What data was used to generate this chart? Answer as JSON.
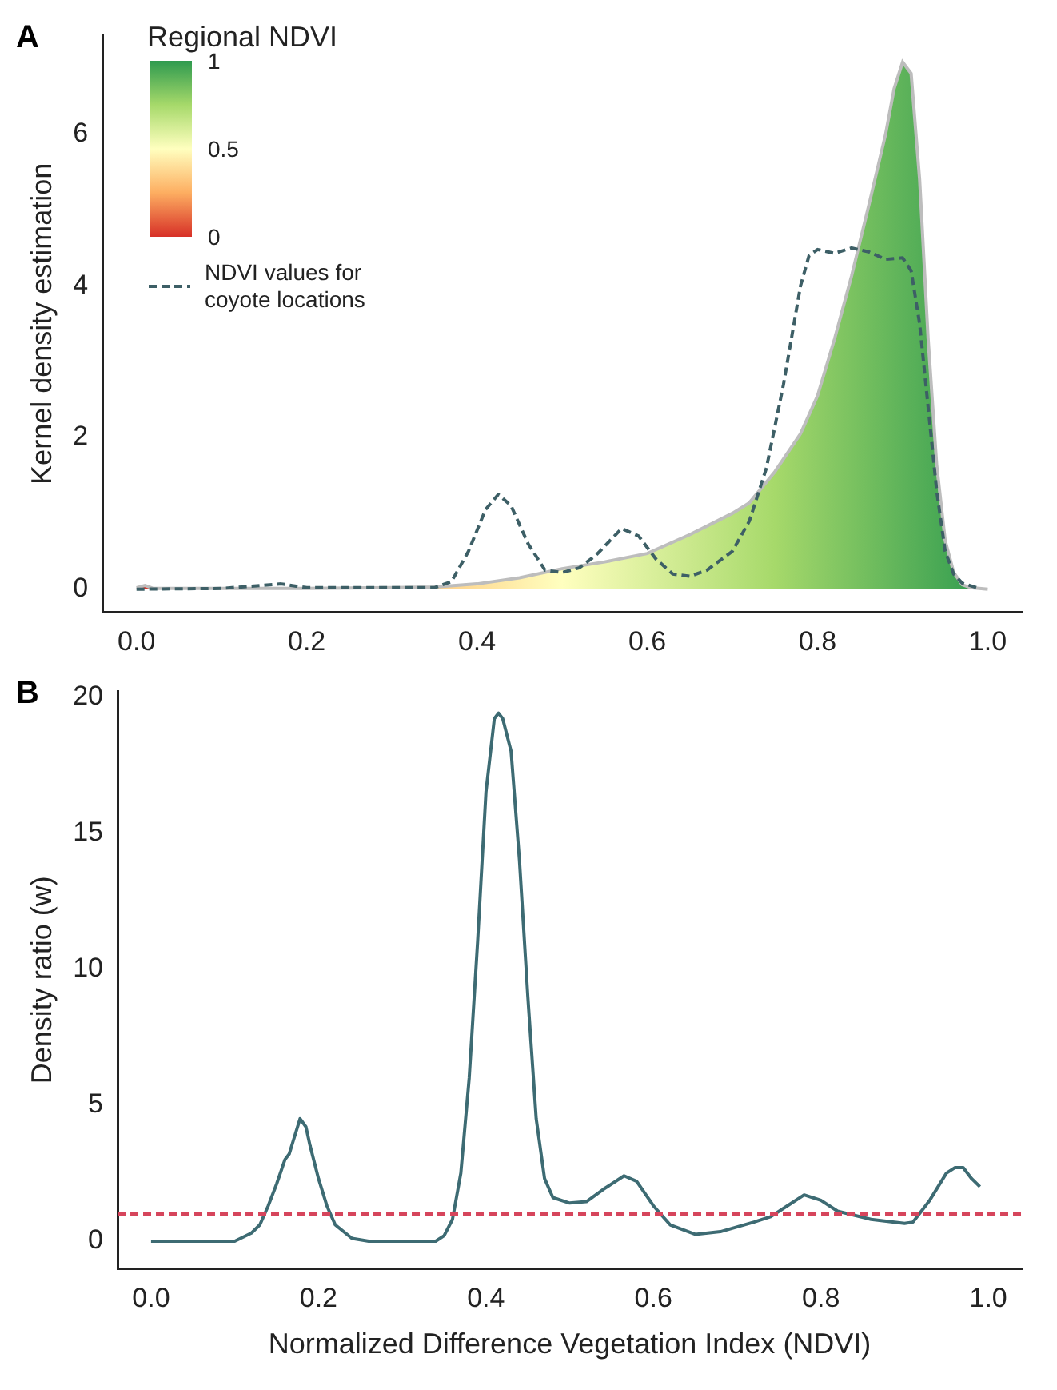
{
  "chart_data": [
    {
      "type": "area",
      "annotations": [
        "A",
        "1",
        "0.5",
        "0"
      ],
      "ylabel": "Kernel density estimation",
      "clabel": "Regional NDVI",
      "legend": "top left",
      "xlim": [
        -0.04,
        1.04
      ],
      "xticks": [
        {
          "value": 0,
          "label": "0.0"
        },
        {
          "value": 0.2,
          "label": "0.2"
        },
        {
          "value": 0.4,
          "label": "0.4"
        },
        {
          "value": 0.6,
          "label": "0.6"
        },
        {
          "value": 0.8,
          "label": "0.8"
        },
        {
          "value": 1,
          "label": "1.0"
        }
      ],
      "ylim": [
        -0.3,
        7.3
      ],
      "yticks": [
        0,
        2,
        4,
        6
      ],
      "series": [
        {
          "type": "area",
          "color": "#7cc35f",
          "x": [
            0,
            0.01,
            0.02,
            0.1,
            0.2,
            0.3,
            0.35,
            0.4,
            0.45,
            0.5,
            0.55,
            0.6,
            0.65,
            0.7,
            0.72,
            0.75,
            0.78,
            0.8,
            0.82,
            0.84,
            0.86,
            0.88,
            0.89,
            0.9,
            0.91,
            0.92,
            0.93,
            0.94,
            0.95,
            0.96,
            0.97,
            0.98,
            1
          ],
          "values": [
            0.02,
            0.05,
            0.01,
            0.01,
            0.01,
            0.02,
            0.03,
            0.07,
            0.15,
            0.27,
            0.36,
            0.47,
            0.72,
            1.0,
            1.14,
            1.55,
            2.05,
            2.55,
            3.3,
            4.13,
            5.05,
            6.0,
            6.6,
            6.95,
            6.8,
            5.4,
            3.3,
            1.64,
            0.64,
            0.22,
            0.06,
            0.02,
            0
          ]
        },
        {
          "type": "line",
          "name": "NDVI values for coyote locations",
          "color": "#3d5f66",
          "line_style": "dashed",
          "x": [
            0,
            0.1,
            0.17,
            0.2,
            0.35,
            0.37,
            0.39,
            0.41,
            0.425,
            0.44,
            0.46,
            0.48,
            0.5,
            0.52,
            0.54,
            0.57,
            0.59,
            0.61,
            0.63,
            0.65,
            0.67,
            0.7,
            0.72,
            0.74,
            0.76,
            0.78,
            0.79,
            0.8,
            0.82,
            0.84,
            0.86,
            0.88,
            0.9,
            0.91,
            0.92,
            0.93,
            0.94,
            0.95,
            0.96,
            0.97,
            0.99
          ],
          "values": [
            0,
            0.01,
            0.07,
            0.02,
            0.02,
            0.1,
            0.5,
            1.05,
            1.25,
            1.1,
            0.6,
            0.25,
            0.22,
            0.28,
            0.45,
            0.8,
            0.7,
            0.4,
            0.2,
            0.17,
            0.25,
            0.5,
            0.9,
            1.6,
            2.7,
            4.0,
            4.4,
            4.48,
            4.43,
            4.5,
            4.45,
            4.35,
            4.37,
            4.2,
            3.5,
            2.4,
            1.3,
            0.5,
            0.2,
            0.08,
            0.01
          ]
        }
      ]
    },
    {
      "type": "line",
      "annotations": [
        "B"
      ],
      "xlabel": "Normalized Difference Vegetation Index (NDVI)",
      "ylabel": "Density ratio (w)",
      "xlim": [
        -0.04,
        1.04
      ],
      "xticks": [
        {
          "value": 0,
          "label": "0.0"
        },
        {
          "value": 0.2,
          "label": "0.2"
        },
        {
          "value": 0.4,
          "label": "0.4"
        },
        {
          "value": 0.6,
          "label": "0.6"
        },
        {
          "value": 0.8,
          "label": "0.8"
        },
        {
          "value": 1,
          "label": "1.0"
        }
      ],
      "ylim": [
        -1,
        20.2
      ],
      "yticks": [
        0,
        5,
        10,
        15,
        20
      ],
      "ref_lines": [
        {
          "axis": "y",
          "value": 1,
          "color": "#d6455c",
          "line_style": "dashed"
        }
      ],
      "series": [
        {
          "color": "#3d6b73",
          "x": [
            0,
            0.1,
            0.12,
            0.13,
            0.14,
            0.15,
            0.16,
            0.165,
            0.17,
            0.178,
            0.185,
            0.19,
            0.2,
            0.21,
            0.22,
            0.24,
            0.26,
            0.34,
            0.35,
            0.36,
            0.37,
            0.38,
            0.39,
            0.4,
            0.41,
            0.415,
            0.42,
            0.43,
            0.44,
            0.45,
            0.46,
            0.47,
            0.48,
            0.5,
            0.52,
            0.54,
            0.565,
            0.58,
            0.6,
            0.62,
            0.65,
            0.68,
            0.72,
            0.74,
            0.76,
            0.78,
            0.8,
            0.82,
            0.86,
            0.9,
            0.91,
            0.93,
            0.95,
            0.96,
            0.97,
            0.98,
            0.99
          ],
          "values": [
            0,
            0,
            0.3,
            0.6,
            1.3,
            2.1,
            3.0,
            3.2,
            3.7,
            4.5,
            4.2,
            3.5,
            2.3,
            1.3,
            0.6,
            0.1,
            0,
            0,
            0.2,
            0.8,
            2.5,
            6,
            11,
            16.5,
            19.2,
            19.4,
            19.2,
            18,
            14,
            9,
            4.5,
            2.3,
            1.6,
            1.4,
            1.45,
            1.9,
            2.4,
            2.2,
            1.3,
            0.6,
            0.25,
            0.35,
            0.7,
            0.9,
            1.3,
            1.7,
            1.5,
            1.1,
            0.8,
            0.65,
            0.7,
            1.5,
            2.5,
            2.7,
            2.7,
            2.3,
            2.0
          ]
        }
      ]
    }
  ]
}
